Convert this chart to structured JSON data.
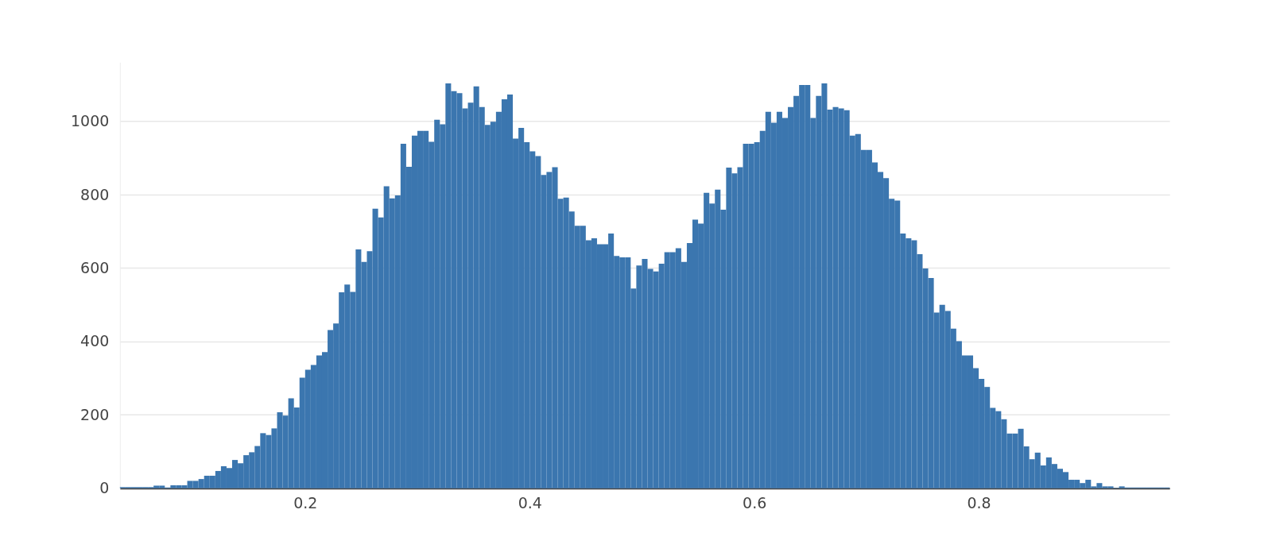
{
  "chart_data": {
    "type": "histogram",
    "bins": [
      0.035,
      0.04,
      0.045,
      0.05,
      0.055,
      0.06,
      0.065,
      0.07,
      0.075,
      0.08,
      0.085,
      0.09,
      0.095,
      0.1,
      0.105,
      0.11,
      0.115,
      0.12,
      0.125,
      0.13,
      0.135,
      0.14,
      0.145,
      0.15,
      0.155,
      0.16,
      0.165,
      0.17,
      0.175,
      0.18,
      0.185,
      0.19,
      0.195,
      0.2,
      0.205,
      0.21,
      0.215,
      0.22,
      0.225,
      0.23,
      0.235,
      0.24,
      0.245,
      0.25,
      0.255,
      0.26,
      0.265,
      0.27,
      0.275,
      0.28,
      0.285,
      0.29,
      0.295,
      0.3,
      0.305,
      0.31,
      0.315,
      0.32,
      0.325,
      0.33,
      0.335,
      0.34,
      0.345,
      0.35,
      0.355,
      0.36,
      0.365,
      0.37,
      0.375,
      0.38,
      0.385,
      0.39,
      0.395,
      0.4,
      0.405,
      0.41,
      0.415,
      0.42,
      0.425,
      0.43,
      0.435,
      0.44,
      0.445,
      0.45,
      0.455,
      0.46,
      0.465,
      0.47,
      0.475,
      0.48,
      0.485,
      0.49,
      0.495,
      0.5,
      0.505,
      0.51,
      0.515,
      0.52,
      0.525,
      0.53,
      0.535,
      0.54,
      0.545,
      0.55,
      0.555,
      0.56,
      0.565,
      0.57,
      0.575,
      0.58,
      0.585,
      0.59,
      0.595,
      0.6,
      0.605,
      0.61,
      0.615,
      0.62,
      0.625,
      0.63,
      0.635,
      0.64,
      0.645,
      0.65,
      0.655,
      0.66,
      0.665,
      0.67,
      0.675,
      0.68,
      0.685,
      0.69,
      0.695,
      0.7,
      0.705,
      0.71,
      0.715,
      0.72,
      0.725,
      0.73,
      0.735,
      0.74,
      0.745,
      0.75,
      0.755,
      0.76,
      0.765,
      0.77,
      0.775,
      0.78,
      0.785,
      0.79,
      0.795,
      0.8,
      0.805,
      0.81,
      0.815,
      0.82,
      0.825,
      0.83,
      0.835,
      0.84,
      0.845,
      0.85,
      0.855,
      0.86,
      0.865,
      0.87,
      0.875,
      0.88,
      0.885,
      0.89,
      0.895,
      0.9,
      0.905,
      0.91,
      0.915,
      0.92,
      0.925,
      0.93,
      0.935,
      0.94,
      0.945,
      0.95,
      0.955,
      0.96,
      0.965,
      0.97
    ],
    "values": [
      3,
      3,
      3,
      3,
      3,
      3,
      7,
      7,
      2,
      8,
      8,
      8,
      20,
      20,
      25,
      34,
      34,
      47,
      60,
      55,
      77,
      68,
      90,
      98,
      115,
      150,
      145,
      163,
      207,
      198,
      245,
      220,
      301,
      323,
      336,
      362,
      371,
      431,
      449,
      534,
      555,
      535,
      651,
      617,
      646,
      762,
      738,
      823,
      790,
      798,
      939,
      876,
      961,
      974,
      974,
      944,
      1004,
      992,
      1103,
      1082,
      1077,
      1035,
      1051,
      1095,
      1039,
      990,
      999,
      1026,
      1060,
      1073,
      953,
      982,
      943,
      918,
      905,
      854,
      862,
      875,
      789,
      792,
      754,
      715,
      715,
      676,
      681,
      665,
      665,
      694,
      633,
      629,
      629,
      544,
      607,
      625,
      598,
      591,
      612,
      643,
      643,
      654,
      617,
      668,
      732,
      721,
      805,
      776,
      814,
      759,
      874,
      858,
      875,
      939,
      939,
      943,
      974,
      1026,
      996,
      1026,
      1009,
      1039,
      1069,
      1099,
      1099,
      1009,
      1069,
      1103,
      1032,
      1039,
      1035,
      1030,
      961,
      965,
      922,
      922,
      888,
      862,
      845,
      789,
      784,
      694,
      681,
      676,
      638,
      599,
      573,
      479,
      500,
      483,
      435,
      401,
      362,
      362,
      327,
      298,
      276,
      219,
      210,
      188,
      149,
      149,
      162,
      114,
      79,
      97,
      62,
      84,
      66,
      53,
      44,
      23,
      23,
      14,
      23,
      5,
      14,
      5,
      5,
      1,
      5,
      2,
      2,
      2,
      2,
      2,
      2,
      2,
      2
    ],
    "color": "#3b76af",
    "xlim": [
      0.035,
      0.97
    ],
    "xticks": [
      0.2,
      0.4,
      0.6,
      0.8
    ],
    "ylim": [
      0,
      1161
    ],
    "yticks": [
      0,
      200,
      400,
      600,
      800,
      1000
    ],
    "grid": "y"
  }
}
